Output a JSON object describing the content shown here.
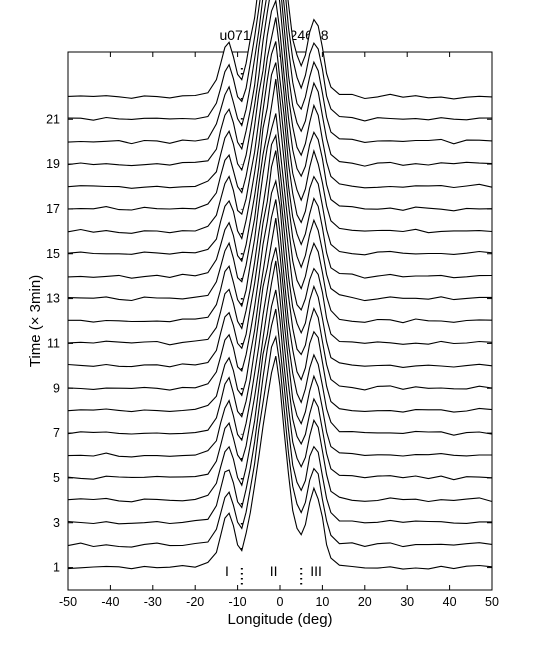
{
  "chart_data": {
    "type": "line",
    "title": "u071020_024648",
    "xlabel": "Longitude (deg)",
    "ylabel": "Time (× 3min)",
    "xlim": [
      -50,
      50
    ],
    "ylim": [
      0,
      24
    ],
    "xticks": [
      -50,
      -40,
      -30,
      -20,
      -10,
      0,
      10,
      20,
      30,
      40,
      50
    ],
    "yticks": [
      1,
      3,
      5,
      7,
      9,
      11,
      13,
      15,
      17,
      19,
      21
    ],
    "grid": false,
    "legend": "none",
    "vertical_markers": [
      -9,
      5
    ],
    "component_labels": [
      {
        "text": "I",
        "x": -12.5
      },
      {
        "text": "II",
        "x": -1.5
      },
      {
        "text": "III",
        "x": 8.5
      }
    ],
    "profile_count": 22,
    "profile_spacing": 1,
    "x": [
      -50,
      -47,
      -44,
      -41,
      -38,
      -35,
      -32,
      -29,
      -26,
      -23,
      -20,
      -17,
      -15,
      -14,
      -13,
      -12,
      -11,
      -10,
      -9,
      -8,
      -7,
      -6,
      -5,
      -4,
      -3,
      -2,
      -1,
      0,
      1,
      2,
      3,
      4,
      5,
      6,
      7,
      8,
      9,
      10,
      11,
      12,
      14,
      17,
      20,
      23,
      26,
      29,
      32,
      35,
      38,
      41,
      44,
      47,
      50
    ],
    "mean_profile": [
      0,
      0.03,
      -0.02,
      0.04,
      0,
      -0.03,
      0.02,
      0.04,
      -0.02,
      0.03,
      0.05,
      0.15,
      0.6,
      1.2,
      1.8,
      2.0,
      1.5,
      0.8,
      0.6,
      1.2,
      2.1,
      3.0,
      4.2,
      5.3,
      6.3,
      7.3,
      7.9,
      6.6,
      5.0,
      3.4,
      2.2,
      1.5,
      1.2,
      1.6,
      2.4,
      2.9,
      2.6,
      1.8,
      0.9,
      0.35,
      0.1,
      0.04,
      -0.03,
      0.02,
      0.05,
      -0.02,
      0.03,
      0,
      0.04,
      -0.03,
      0.02,
      0.05,
      0
    ],
    "colors": {
      "line": "#000000",
      "background": "#ffffff"
    }
  }
}
